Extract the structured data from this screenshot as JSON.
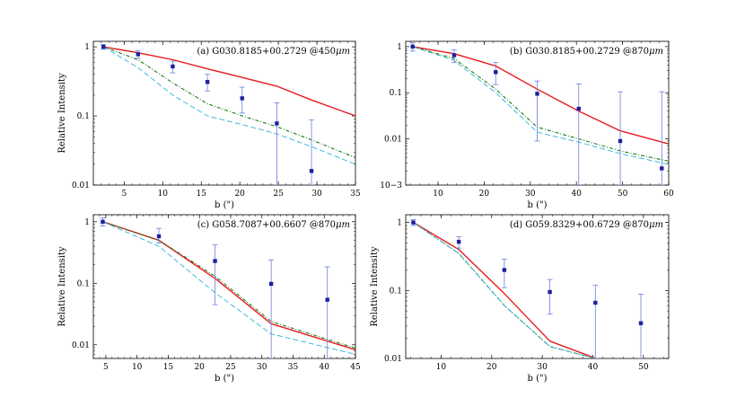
{
  "figure_name": "radial-intensity-profiles",
  "colors": {
    "data": "#1f1f9e",
    "errorbar": "#6a7fe0",
    "model_red": "#e8191e",
    "model_green": "#1a7a1a",
    "model_cyan": "#2ab5d8"
  },
  "chart_data": [
    {
      "type": "line",
      "panel": "a",
      "title": "(a) G030.8185+00.2729 @450",
      "title_unit": "μm",
      "xlabel": "b (\")",
      "ylabel": "Relative Intensity",
      "xlim": [
        1,
        35
      ],
      "ylim": [
        0.01,
        1.2
      ],
      "yscale": "log",
      "xticks": [
        5,
        10,
        15,
        20,
        25,
        30,
        35
      ],
      "yticks": [
        {
          "v": 1,
          "label": "1"
        },
        {
          "v": 0.1,
          "label": "0.1"
        },
        {
          "v": 0.01,
          "label": "0.01"
        }
      ],
      "observed": {
        "x": [
          2.3,
          6.8,
          11.3,
          15.8,
          20.3,
          24.8,
          29.3
        ],
        "y": [
          1.0,
          0.78,
          0.52,
          0.31,
          0.18,
          0.078,
          0.016
        ],
        "err_low": [
          0.92,
          0.68,
          0.42,
          0.23,
          0.11,
          0.01,
          0.01
        ],
        "err_high": [
          1.08,
          0.88,
          0.62,
          0.4,
          0.26,
          0.155,
          0.088
        ]
      },
      "series": [
        {
          "name": "model-red",
          "style": "solid",
          "x": [
            2.3,
            6.8,
            11.3,
            15.8,
            20.3,
            24.8,
            29.3,
            35
          ],
          "y": [
            1.0,
            0.82,
            0.65,
            0.48,
            0.36,
            0.27,
            0.17,
            0.1
          ]
        },
        {
          "name": "model-green",
          "style": "dashdot",
          "x": [
            2.3,
            6.8,
            11.3,
            15.8,
            20.3,
            24.8,
            29.3,
            35
          ],
          "y": [
            1.0,
            0.65,
            0.3,
            0.15,
            0.1,
            0.07,
            0.045,
            0.025
          ]
        },
        {
          "name": "model-cyan",
          "style": "dashed",
          "x": [
            2.3,
            6.8,
            11.3,
            15.8,
            20.3,
            24.8,
            29.3,
            35
          ],
          "y": [
            1.0,
            0.5,
            0.2,
            0.1,
            0.075,
            0.055,
            0.036,
            0.02
          ]
        }
      ]
    },
    {
      "type": "line",
      "panel": "b",
      "title": "(b) G030.8185+00.2729 @870",
      "title_unit": "μm",
      "xlabel": "b (\")",
      "ylabel": "",
      "xlim": [
        3,
        60
      ],
      "ylim": [
        0.001,
        1.3
      ],
      "yscale": "log",
      "xticks": [
        10,
        20,
        30,
        40,
        50,
        60
      ],
      "yticks": [
        {
          "v": 1,
          "label": "1"
        },
        {
          "v": 0.1,
          "label": "0.1"
        },
        {
          "v": 0.01,
          "label": "0.01"
        },
        {
          "v": 0.001,
          "label": "10−3"
        }
      ],
      "observed": {
        "x": [
          4.5,
          13.5,
          22.5,
          31.5,
          40.5,
          49.5,
          58.5
        ],
        "y": [
          1.0,
          0.65,
          0.28,
          0.095,
          0.045,
          0.009,
          0.0023
        ],
        "err_low": [
          0.8,
          0.45,
          0.15,
          0.009,
          0.001,
          0.001,
          0.001
        ],
        "err_high": [
          1.2,
          0.85,
          0.45,
          0.18,
          0.155,
          0.105,
          0.105
        ]
      },
      "series": [
        {
          "name": "model-red",
          "style": "solid",
          "x": [
            4.5,
            13.5,
            22.5,
            31.5,
            40.5,
            49.5,
            60
          ],
          "y": [
            1.0,
            0.7,
            0.38,
            0.12,
            0.04,
            0.015,
            0.0078
          ]
        },
        {
          "name": "model-green",
          "style": "dashdot",
          "x": [
            4.5,
            13.5,
            22.5,
            31.5,
            40.5,
            49.5,
            60
          ],
          "y": [
            1.0,
            0.55,
            0.12,
            0.018,
            0.01,
            0.0055,
            0.0033
          ]
        },
        {
          "name": "model-cyan",
          "style": "dashed",
          "x": [
            4.5,
            13.5,
            22.5,
            31.5,
            40.5,
            49.5,
            60
          ],
          "y": [
            1.0,
            0.5,
            0.1,
            0.014,
            0.0085,
            0.0048,
            0.0028
          ]
        }
      ]
    },
    {
      "type": "line",
      "panel": "c",
      "title": "(c) G058.7087+00.6607 @870",
      "title_unit": "μm",
      "xlabel": "b (\")",
      "ylabel": "Relative Intensity",
      "xlim": [
        3,
        45
      ],
      "ylim": [
        0.006,
        1.3
      ],
      "yscale": "log",
      "xticks": [
        5,
        10,
        15,
        20,
        25,
        30,
        35,
        40,
        45
      ],
      "yticks": [
        {
          "v": 1,
          "label": "1"
        },
        {
          "v": 0.1,
          "label": "0.1"
        },
        {
          "v": 0.01,
          "label": "0.01"
        }
      ],
      "observed": {
        "x": [
          4.5,
          13.5,
          22.5,
          31.5,
          40.5
        ],
        "y": [
          1.0,
          0.58,
          0.23,
          0.098,
          0.054
        ],
        "err_low": [
          0.85,
          0.45,
          0.045,
          0.006,
          0.006
        ],
        "err_high": [
          1.15,
          0.78,
          0.42,
          0.24,
          0.185
        ]
      },
      "series": [
        {
          "name": "model-red",
          "style": "solid",
          "x": [
            4.5,
            13.5,
            22.5,
            31.5,
            45
          ],
          "y": [
            1.0,
            0.5,
            0.12,
            0.022,
            0.0083
          ]
        },
        {
          "name": "model-green",
          "style": "dashdot",
          "x": [
            4.5,
            13.5,
            22.5,
            31.5,
            45
          ],
          "y": [
            1.0,
            0.5,
            0.13,
            0.024,
            0.0088
          ]
        },
        {
          "name": "model-cyan",
          "style": "dashed",
          "x": [
            4.5,
            13.5,
            22.5,
            31.5,
            45
          ],
          "y": [
            1.0,
            0.4,
            0.07,
            0.015,
            0.007
          ]
        }
      ]
    },
    {
      "type": "line",
      "panel": "d",
      "title": "(d) G059.8329+00.6729 @870",
      "title_unit": "μm",
      "xlabel": "b (\")",
      "ylabel": "Relative Intensity",
      "xlim": [
        3,
        55
      ],
      "ylim": [
        0.01,
        1.3
      ],
      "yscale": "log",
      "xticks": [
        10,
        20,
        30,
        40,
        50
      ],
      "yticks": [
        {
          "v": 1,
          "label": "1"
        },
        {
          "v": 0.1,
          "label": "0.1"
        },
        {
          "v": 0.01,
          "label": "0.01"
        }
      ],
      "observed": {
        "x": [
          4.5,
          13.5,
          22.5,
          31.5,
          40.5,
          49.5
        ],
        "y": [
          1.0,
          0.52,
          0.2,
          0.095,
          0.066,
          0.033
        ],
        "err_low": [
          0.9,
          0.42,
          0.11,
          0.045,
          0.01,
          0.01
        ],
        "err_high": [
          1.1,
          0.62,
          0.29,
          0.145,
          0.12,
          0.088
        ]
      },
      "series": [
        {
          "name": "model-red",
          "style": "solid",
          "x": [
            4.5,
            13.5,
            22.5,
            31.5,
            40.5
          ],
          "y": [
            1.0,
            0.4,
            0.09,
            0.018,
            0.0101
          ]
        },
        {
          "name": "model-green",
          "style": "dashdot",
          "x": [
            4.5,
            13.5,
            22.5,
            31.5,
            40.5
          ],
          "y": [
            1.0,
            0.35,
            0.06,
            0.015,
            0.0098
          ]
        },
        {
          "name": "model-cyan",
          "style": "dashed",
          "x": [
            4.5,
            13.5,
            22.5,
            31.5,
            40.5
          ],
          "y": [
            1.0,
            0.35,
            0.06,
            0.015,
            0.0098
          ]
        }
      ]
    }
  ]
}
